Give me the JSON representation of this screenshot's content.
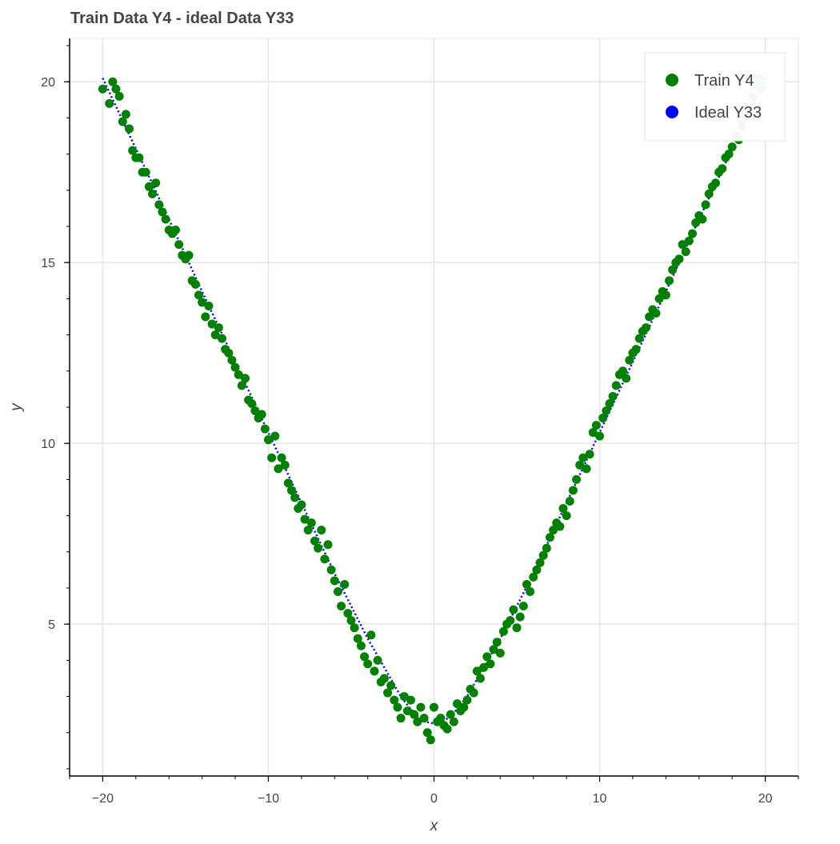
{
  "chart_data": {
    "type": "scatter",
    "title": "Train Data Y4 - ideal Data Y33",
    "xlabel": "x",
    "ylabel": "y",
    "xlim": [
      -22,
      22
    ],
    "ylim": [
      0.8,
      21.2
    ],
    "grid": true,
    "legend_position": "top-right",
    "x_ticks": [
      -20,
      -10,
      0,
      10,
      20
    ],
    "x_tick_labels": [
      "−20",
      "−10",
      "0",
      "10",
      "20"
    ],
    "y_ticks": [
      5,
      10,
      15,
      20
    ],
    "y_tick_labels": [
      "5",
      "10",
      "15",
      "20"
    ],
    "x_minor_step": 2,
    "y_minor_step": 1,
    "series": [
      {
        "name": "Train Y4",
        "kind": "scatter",
        "color": "#008000",
        "points": [
          [
            -20,
            19.8
          ],
          [
            -19.6,
            19.4
          ],
          [
            -19.4,
            20
          ],
          [
            -19.2,
            19.8
          ],
          [
            -19,
            19.6
          ],
          [
            -18.8,
            18.9
          ],
          [
            -18.6,
            19.1
          ],
          [
            -18.4,
            18.7
          ],
          [
            -18.2,
            18.1
          ],
          [
            -18,
            17.9
          ],
          [
            -17.8,
            17.9
          ],
          [
            -17.6,
            17.5
          ],
          [
            -17.4,
            17.5
          ],
          [
            -17.2,
            17.1
          ],
          [
            -17,
            16.9
          ],
          [
            -16.8,
            17.2
          ],
          [
            -16.6,
            16.6
          ],
          [
            -16.4,
            16.4
          ],
          [
            -16.2,
            16.2
          ],
          [
            -16,
            15.9
          ],
          [
            -15.8,
            15.8
          ],
          [
            -15.6,
            15.9
          ],
          [
            -15.4,
            15.5
          ],
          [
            -15.2,
            15.2
          ],
          [
            -15,
            15.1
          ],
          [
            -14.8,
            15.2
          ],
          [
            -14.6,
            14.5
          ],
          [
            -14.4,
            14.4
          ],
          [
            -14.2,
            14.1
          ],
          [
            -14,
            13.9
          ],
          [
            -13.8,
            13.5
          ],
          [
            -13.6,
            13.8
          ],
          [
            -13.4,
            13.3
          ],
          [
            -13.2,
            13
          ],
          [
            -13,
            13.2
          ],
          [
            -12.8,
            12.9
          ],
          [
            -12.6,
            12.6
          ],
          [
            -12.4,
            12.5
          ],
          [
            -12.2,
            12.3
          ],
          [
            -12,
            12.1
          ],
          [
            -11.8,
            11.9
          ],
          [
            -11.6,
            11.6
          ],
          [
            -11.4,
            11.8
          ],
          [
            -11.2,
            11.2
          ],
          [
            -11,
            11.1
          ],
          [
            -10.8,
            10.9
          ],
          [
            -10.6,
            10.7
          ],
          [
            -10.4,
            10.8
          ],
          [
            -10.2,
            10.4
          ],
          [
            -10,
            10.1
          ],
          [
            -9.8,
            9.6
          ],
          [
            -9.6,
            10.2
          ],
          [
            -9.4,
            9.3
          ],
          [
            -9.2,
            9.6
          ],
          [
            -9,
            9.4
          ],
          [
            -8.8,
            8.9
          ],
          [
            -8.6,
            8.7
          ],
          [
            -8.4,
            8.5
          ],
          [
            -8.2,
            8.2
          ],
          [
            -8,
            8.3
          ],
          [
            -7.8,
            7.9
          ],
          [
            -7.6,
            7.6
          ],
          [
            -7.4,
            7.8
          ],
          [
            -7.2,
            7.3
          ],
          [
            -7,
            7.1
          ],
          [
            -6.8,
            7.6
          ],
          [
            -6.6,
            6.8
          ],
          [
            -6.4,
            7.2
          ],
          [
            -6.2,
            6.5
          ],
          [
            -6,
            6.2
          ],
          [
            -5.8,
            5.9
          ],
          [
            -5.6,
            5.5
          ],
          [
            -5.4,
            6.1
          ],
          [
            -5.2,
            5.3
          ],
          [
            -5,
            5.1
          ],
          [
            -4.8,
            4.9
          ],
          [
            -4.6,
            4.6
          ],
          [
            -4.4,
            4.4
          ],
          [
            -4.2,
            4.1
          ],
          [
            -4,
            3.9
          ],
          [
            -3.8,
            4.7
          ],
          [
            -3.6,
            3.7
          ],
          [
            -3.4,
            4
          ],
          [
            -3.2,
            3.4
          ],
          [
            -3,
            3.5
          ],
          [
            -2.8,
            3.1
          ],
          [
            -2.6,
            3.3
          ],
          [
            -2.4,
            2.9
          ],
          [
            -2.2,
            2.7
          ],
          [
            -2,
            2.4
          ],
          [
            -1.8,
            3
          ],
          [
            -1.6,
            2.6
          ],
          [
            -1.4,
            2.9
          ],
          [
            -1.2,
            2.5
          ],
          [
            -1,
            2.3
          ],
          [
            -0.8,
            2.7
          ],
          [
            -0.6,
            2.4
          ],
          [
            -0.4,
            2
          ],
          [
            -0.2,
            1.8
          ],
          [
            0,
            2.7
          ],
          [
            0.2,
            2.3
          ],
          [
            0.4,
            2.4
          ],
          [
            0.6,
            2.2
          ],
          [
            0.8,
            2.1
          ],
          [
            1,
            2.5
          ],
          [
            1.2,
            2.3
          ],
          [
            1.4,
            2.8
          ],
          [
            1.6,
            2.6
          ],
          [
            1.8,
            2.7
          ],
          [
            2,
            2.9
          ],
          [
            2.2,
            3.2
          ],
          [
            2.4,
            3.1
          ],
          [
            2.6,
            3.7
          ],
          [
            2.8,
            3.5
          ],
          [
            3,
            3.8
          ],
          [
            3.2,
            4.1
          ],
          [
            3.4,
            3.9
          ],
          [
            3.6,
            4.3
          ],
          [
            3.8,
            4.5
          ],
          [
            4,
            4.2
          ],
          [
            4.2,
            4.8
          ],
          [
            4.4,
            5
          ],
          [
            4.6,
            5.1
          ],
          [
            4.8,
            5.4
          ],
          [
            5,
            4.9
          ],
          [
            5.2,
            5.2
          ],
          [
            5.4,
            5.5
          ],
          [
            5.6,
            6.1
          ],
          [
            5.8,
            5.9
          ],
          [
            6,
            6.3
          ],
          [
            6.2,
            6.5
          ],
          [
            6.4,
            6.7
          ],
          [
            6.6,
            6.9
          ],
          [
            6.8,
            7.1
          ],
          [
            7,
            7.4
          ],
          [
            7.2,
            7.6
          ],
          [
            7.4,
            7.8
          ],
          [
            7.6,
            7.7
          ],
          [
            7.8,
            8.2
          ],
          [
            8,
            8
          ],
          [
            8.2,
            8.4
          ],
          [
            8.4,
            8.7
          ],
          [
            8.6,
            9
          ],
          [
            8.8,
            9.4
          ],
          [
            9,
            9.6
          ],
          [
            9.2,
            9.3
          ],
          [
            9.4,
            9.7
          ],
          [
            9.6,
            10.3
          ],
          [
            9.8,
            10.5
          ],
          [
            10,
            10.2
          ],
          [
            10.2,
            10.7
          ],
          [
            10.4,
            10.9
          ],
          [
            10.6,
            11.1
          ],
          [
            10.8,
            11.3
          ],
          [
            11,
            11.6
          ],
          [
            11.2,
            11.9
          ],
          [
            11.4,
            12
          ],
          [
            11.6,
            11.8
          ],
          [
            11.8,
            12.3
          ],
          [
            12,
            12.5
          ],
          [
            12.2,
            12.6
          ],
          [
            12.4,
            12.9
          ],
          [
            12.6,
            13.1
          ],
          [
            12.8,
            13.2
          ],
          [
            13,
            13.5
          ],
          [
            13.2,
            13.7
          ],
          [
            13.4,
            13.6
          ],
          [
            13.6,
            14
          ],
          [
            13.8,
            14.2
          ],
          [
            14,
            14.1
          ],
          [
            14.2,
            14.5
          ],
          [
            14.4,
            14.8
          ],
          [
            14.6,
            15
          ],
          [
            14.8,
            15.1
          ],
          [
            15,
            15.5
          ],
          [
            15.2,
            15.3
          ],
          [
            15.4,
            15.6
          ],
          [
            15.6,
            15.8
          ],
          [
            15.8,
            16.1
          ],
          [
            16,
            16.3
          ],
          [
            16.2,
            16.2
          ],
          [
            16.4,
            16.6
          ],
          [
            16.6,
            16.9
          ],
          [
            16.8,
            17.1
          ],
          [
            17,
            17.2
          ],
          [
            17.2,
            17.5
          ],
          [
            17.4,
            17.6
          ],
          [
            17.6,
            17.9
          ],
          [
            17.8,
            18
          ],
          [
            18,
            18.2
          ],
          [
            18.2,
            18.5
          ],
          [
            18.4,
            18.4
          ],
          [
            18.6,
            18.8
          ],
          [
            18.8,
            19.1
          ],
          [
            19,
            19.3
          ],
          [
            19.2,
            19.6
          ],
          [
            19.4,
            19.9
          ],
          [
            19.6,
            20.1
          ],
          [
            19.8,
            19.8
          ]
        ]
      },
      {
        "name": "Ideal Y33",
        "kind": "dotted-line",
        "color": "#0000FF",
        "points": [
          [
            -20,
            20.1
          ],
          [
            -18,
            18.15
          ],
          [
            -16,
            16.2
          ],
          [
            -14,
            14.2
          ],
          [
            -12,
            12.25
          ],
          [
            -10,
            10.3
          ],
          [
            -8,
            8.35
          ],
          [
            -6,
            6.4
          ],
          [
            -4,
            4.6
          ],
          [
            -3,
            3.8
          ],
          [
            -2,
            3.0
          ],
          [
            -1.5,
            2.7
          ],
          [
            -1,
            2.45
          ],
          [
            -0.5,
            2.3
          ],
          [
            0,
            2.25
          ],
          [
            0.5,
            2.3
          ],
          [
            1,
            2.45
          ],
          [
            1.5,
            2.7
          ],
          [
            2,
            3.0
          ],
          [
            3,
            3.8
          ],
          [
            4,
            4.6
          ],
          [
            6,
            6.4
          ],
          [
            8,
            8.35
          ],
          [
            10,
            10.3
          ],
          [
            12,
            12.25
          ],
          [
            14,
            14.2
          ],
          [
            16,
            16.2
          ],
          [
            18,
            18.15
          ],
          [
            20,
            20.1
          ]
        ]
      }
    ]
  }
}
